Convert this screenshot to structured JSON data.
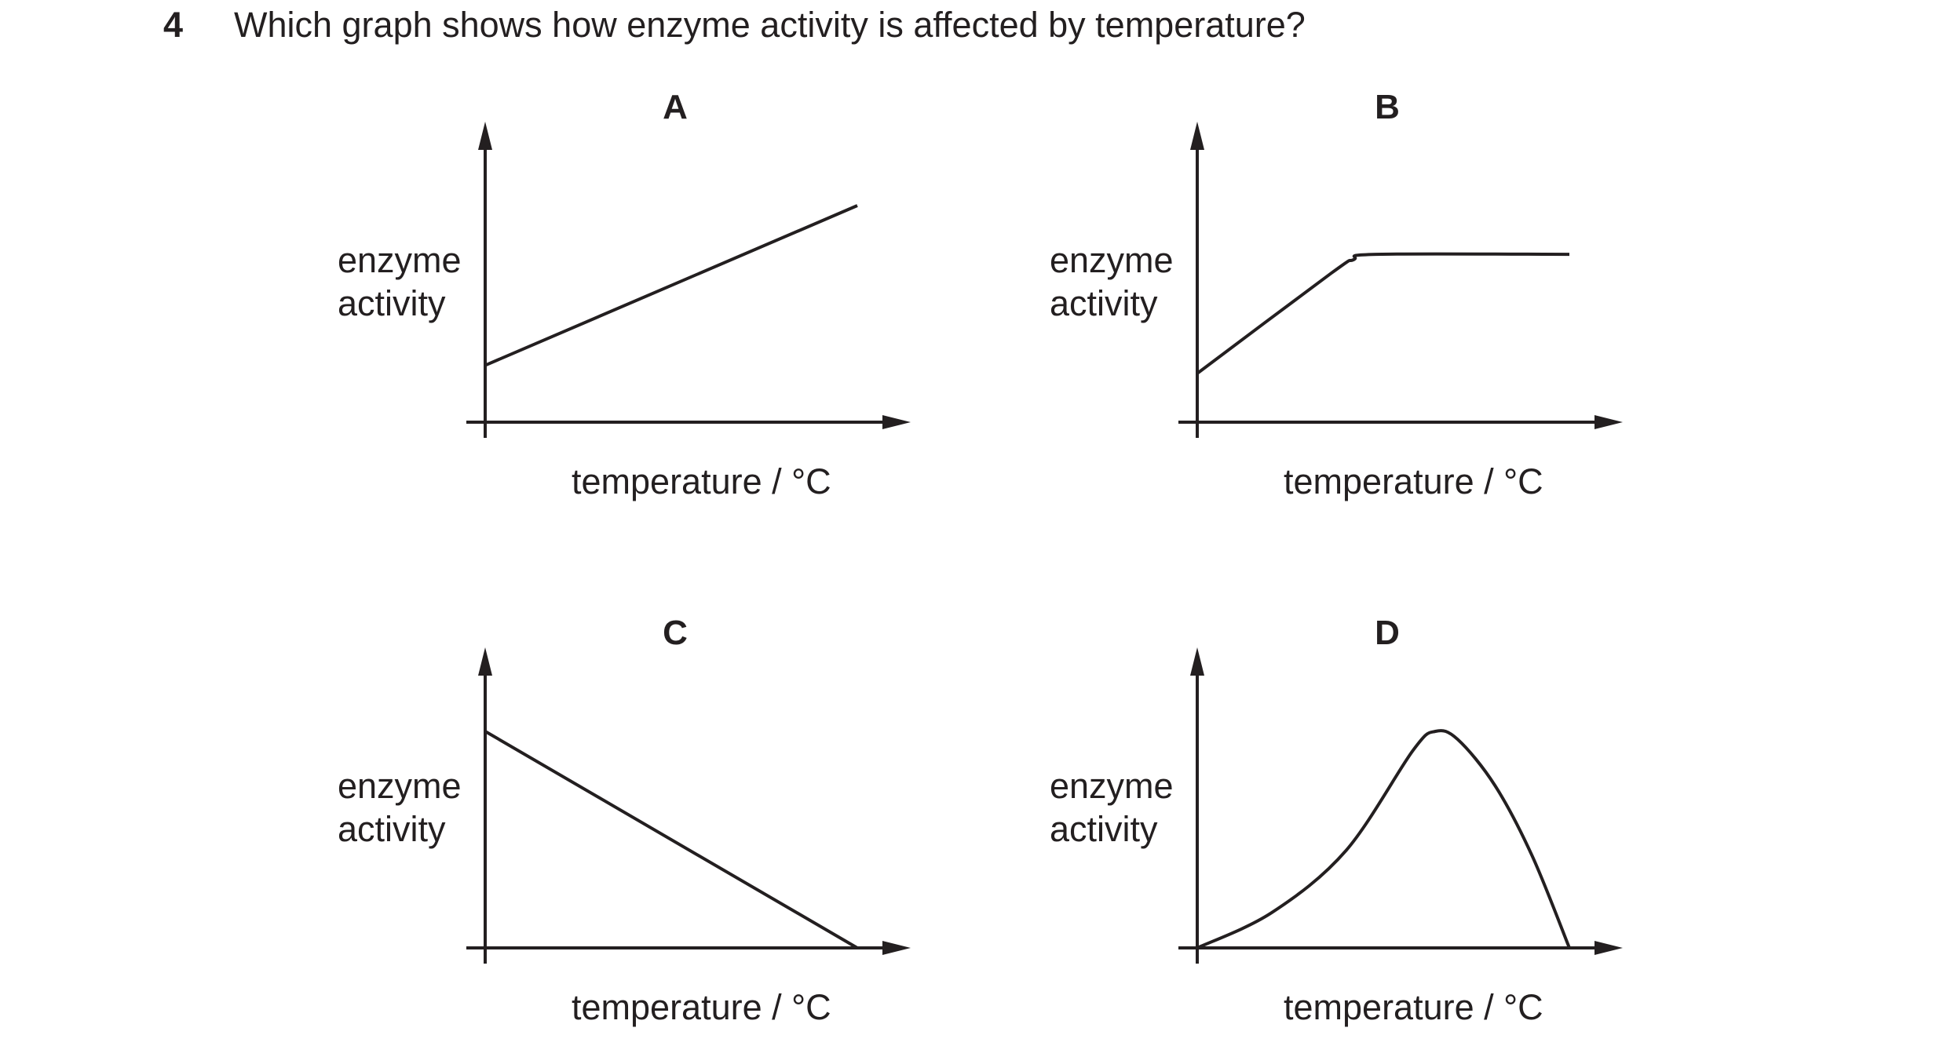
{
  "question": {
    "number": "4",
    "text": "Which graph shows how enzyme activity is affected by temperature?"
  },
  "axis_labels": {
    "y_line1": "enzyme",
    "y_line2": "activity",
    "x": "temperature / °C"
  },
  "chart_data": [
    {
      "type": "line",
      "option": "A",
      "title": "A",
      "xlabel": "temperature / °C",
      "ylabel": "enzyme activity",
      "xlim": [
        0,
        10
      ],
      "ylim": [
        0,
        10
      ],
      "grid": false,
      "series": [
        {
          "x": [
            0,
            10
          ],
          "y": [
            2.1,
            8
          ]
        }
      ]
    },
    {
      "type": "line",
      "option": "B",
      "title": "B",
      "xlabel": "temperature / °C",
      "ylabel": "enzyme activity",
      "xlim": [
        0,
        10
      ],
      "ylim": [
        0,
        10
      ],
      "grid": false,
      "series": [
        {
          "x": [
            0,
            3.6,
            4.2,
            4.8,
            10
          ],
          "y": [
            1.8,
            5.5,
            6.0,
            6.2,
            6.2
          ]
        }
      ]
    },
    {
      "type": "line",
      "option": "C",
      "title": "C",
      "xlabel": "temperature / °C",
      "ylabel": "enzyme activity",
      "xlim": [
        0,
        10
      ],
      "ylim": [
        0,
        10
      ],
      "grid": false,
      "series": [
        {
          "x": [
            0,
            10
          ],
          "y": [
            8,
            0
          ]
        }
      ]
    },
    {
      "type": "line",
      "option": "D",
      "title": "D",
      "xlabel": "temperature / °C",
      "ylabel": "enzyme activity",
      "xlim": [
        0,
        10
      ],
      "ylim": [
        0,
        10
      ],
      "grid": false,
      "series": [
        {
          "x": [
            0,
            2,
            4,
            5.8,
            6.4,
            7,
            8,
            9,
            10
          ],
          "y": [
            0,
            1.3,
            3.6,
            7.3,
            8,
            7.7,
            6,
            3.4,
            0
          ]
        }
      ]
    }
  ]
}
